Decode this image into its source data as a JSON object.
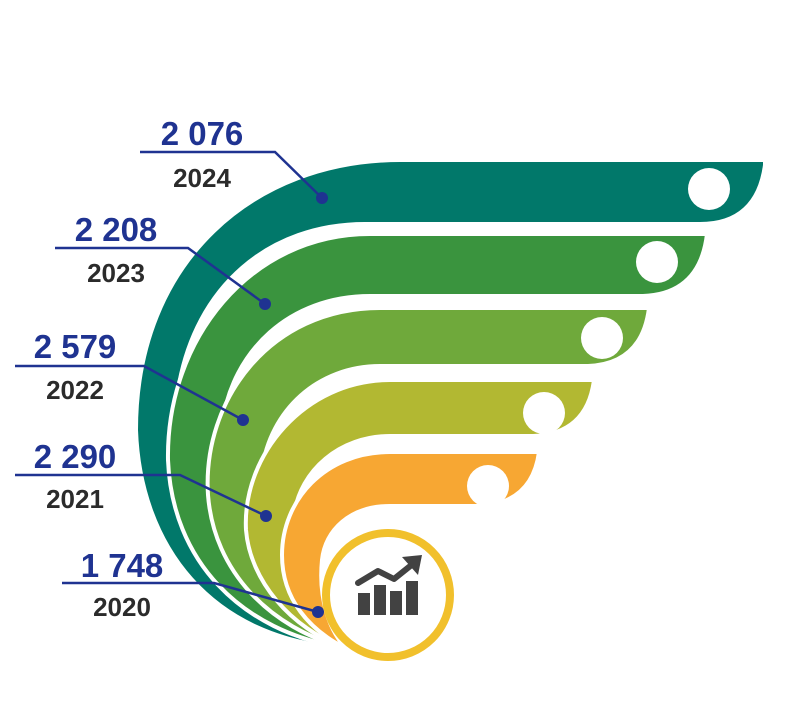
{
  "chart_data": {
    "type": "infographic-bar",
    "categories": [
      "2024",
      "2023",
      "2022",
      "2021",
      "2020"
    ],
    "values": [
      2076,
      2208,
      2579,
      2290,
      1748
    ],
    "value_labels": [
      "2 076",
      "2 208",
      "2 579",
      "2 290",
      "1 748"
    ],
    "icon": "growth-chart-icon"
  },
  "colors": {
    "band_2024": "#01786a",
    "band_2023": "#3a943e",
    "band_2022": "#6fa93b",
    "band_2021": "#b2b832",
    "band_2020": "#f7a733",
    "circle_ring": "#f1c02c",
    "icon": "#424242",
    "value_text": "#1f3391",
    "year_text": "#2b2b2b",
    "leader_line": "#1f3391"
  }
}
